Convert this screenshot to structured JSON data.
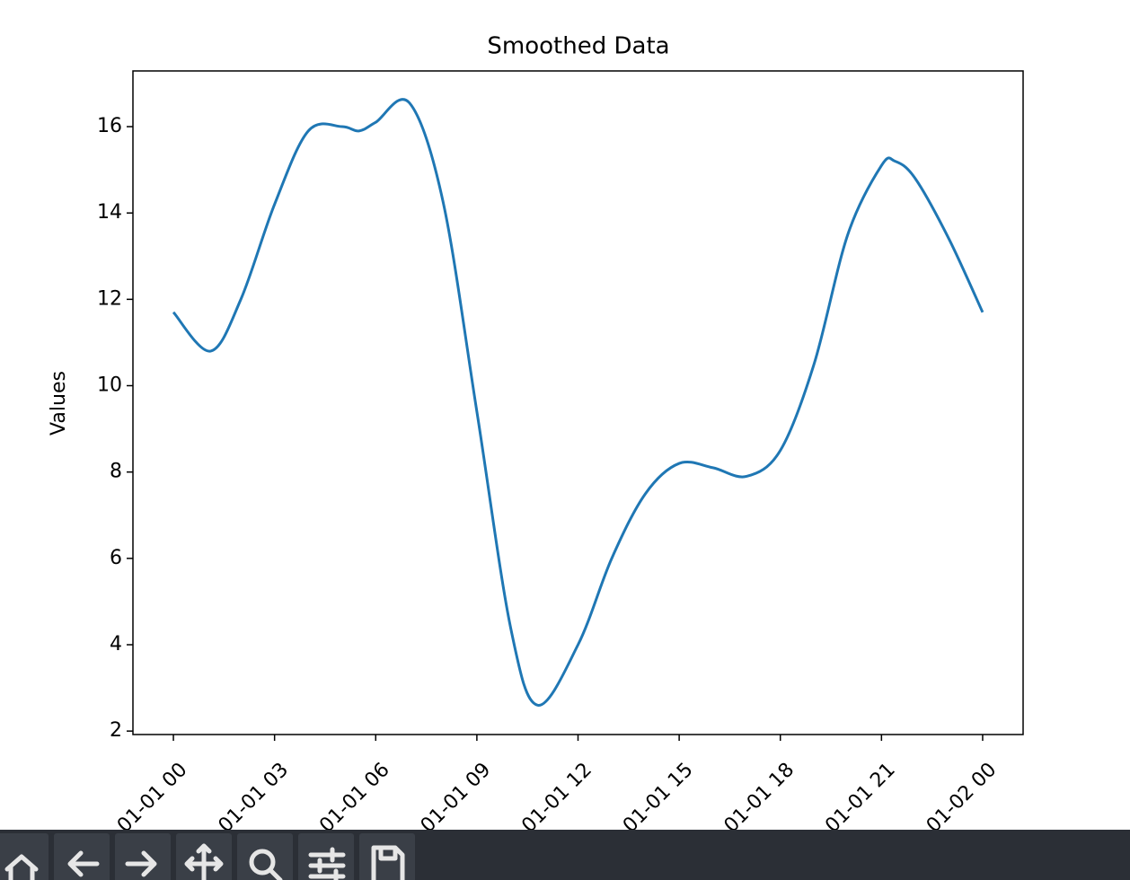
{
  "chart_data": {
    "type": "line",
    "title": "Smoothed Data",
    "y_label": "Values",
    "x": [
      0,
      1.1,
      2,
      3,
      4,
      5,
      5.5,
      6,
      7,
      8,
      9,
      10,
      10.8,
      12,
      13,
      14,
      15,
      16,
      17,
      18,
      19,
      20,
      21,
      21.4,
      22,
      23,
      24
    ],
    "series": [
      {
        "name": "Smoothed",
        "color": "#1f77b4",
        "values": [
          11.7,
          10.8,
          12.0,
          14.2,
          15.9,
          16.0,
          15.9,
          16.1,
          16.55,
          14.25,
          9.4,
          4.4,
          2.6,
          4.0,
          6.0,
          7.5,
          8.2,
          8.1,
          7.9,
          8.5,
          10.5,
          13.5,
          15.1,
          15.2,
          14.8,
          13.4,
          11.7
        ]
      }
    ],
    "xlim": [
      -1.2,
      25.2
    ],
    "ylim": [
      1.92,
      17.29
    ],
    "xticks": [
      {
        "value": 0,
        "label": "01-01 00"
      },
      {
        "value": 3,
        "label": "01-01 03"
      },
      {
        "value": 6,
        "label": "01-01 06"
      },
      {
        "value": 9,
        "label": "01-01 09"
      },
      {
        "value": 12,
        "label": "01-01 12"
      },
      {
        "value": 15,
        "label": "01-01 15"
      },
      {
        "value": 18,
        "label": "01-01 18"
      },
      {
        "value": 21,
        "label": "01-01 21"
      },
      {
        "value": 24,
        "label": "01-02 00"
      }
    ],
    "yticks": [
      2,
      4,
      6,
      8,
      10,
      12,
      14,
      16
    ]
  }
}
